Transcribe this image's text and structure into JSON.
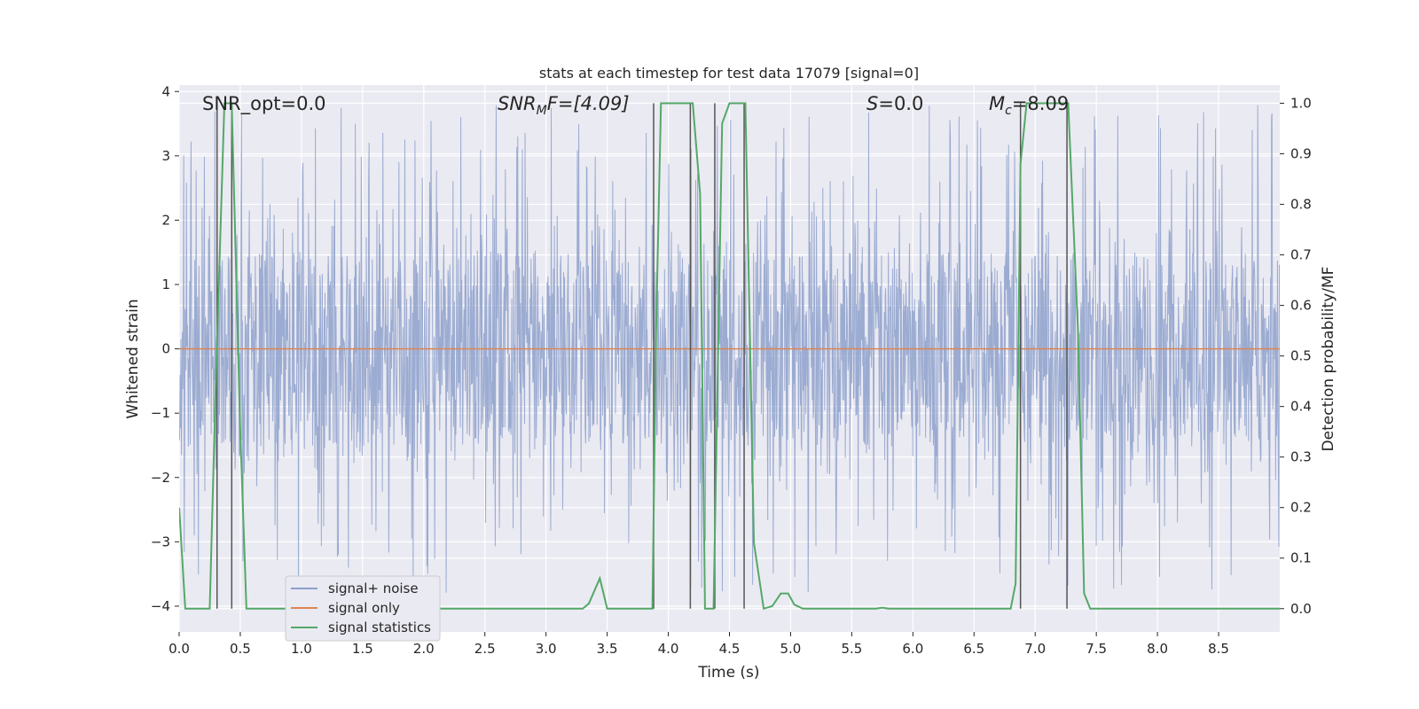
{
  "chart_data": {
    "type": "line",
    "title": "stats at each timestep for test data 17079 [signal=0]",
    "xlabel": "Time (s)",
    "ylabel_left": "Whitened strain",
    "ylabel_right": "Detection probability/MF",
    "xlim": [
      0.0,
      9.0
    ],
    "ylim_left": [
      -4.4,
      4.1
    ],
    "ylim_right": [
      -0.046,
      1.036
    ],
    "x_ticks": [
      0.0,
      0.5,
      1.0,
      1.5,
      2.0,
      2.5,
      3.0,
      3.5,
      4.0,
      4.5,
      5.0,
      5.5,
      6.0,
      6.5,
      7.0,
      7.5,
      8.0,
      8.5
    ],
    "x_tick_labels": [
      "0.0",
      "0.5",
      "1.0",
      "1.5",
      "2.0",
      "2.5",
      "3.0",
      "3.5",
      "4.0",
      "4.5",
      "5.0",
      "5.5",
      "6.0",
      "6.5",
      "7.0",
      "7.5",
      "8.0",
      "8.5"
    ],
    "y_left_ticks": [
      4,
      3,
      2,
      1,
      0,
      -1,
      -2,
      -3,
      -4
    ],
    "y_left_tick_labels": [
      "4",
      "3",
      "2",
      "1",
      "0",
      "−1",
      "−2",
      "−3",
      "−4"
    ],
    "y_right_ticks": [
      1.0,
      0.9,
      0.8,
      0.7,
      0.6,
      0.5,
      0.4,
      0.3,
      0.2,
      0.1,
      0.0
    ],
    "y_right_tick_labels": [
      "1.0",
      "0.9",
      "0.8",
      "0.7",
      "0.6",
      "0.5",
      "0.4",
      "0.3",
      "0.2",
      "0.1",
      "0.0"
    ],
    "grid": true,
    "legend_position": "lower-left",
    "legend": [
      {
        "label": "signal+ noise",
        "color": "#8da0cb"
      },
      {
        "label": "signal only",
        "color": "#dd8452"
      },
      {
        "label": "signal statistics",
        "color": "#55a868"
      }
    ],
    "annotations": {
      "snr_opt": "SNR_opt=0.0",
      "snr_mf_base": "SNR",
      "snr_mf_sub": "M",
      "snr_mf_rest": "F=[4.09]",
      "s_label": "S",
      "s_value": "=0.0",
      "mc_base": "M",
      "mc_sub": "c",
      "mc_value": "=8.09"
    },
    "series": [
      {
        "name": "signal+ noise",
        "axis": "left",
        "color": "#8da0cb",
        "description_level": "dense whitened noise, core band ±1.5, spikes to about ±3.5",
        "core_amplitude": 1.5,
        "spike_max": 3.8
      },
      {
        "name": "signal only",
        "axis": "left",
        "color": "#dd8452",
        "x": [
          0.0,
          9.0
        ],
        "y": [
          0.0,
          0.0
        ]
      },
      {
        "name": "signal statistics",
        "axis": "right",
        "color": "#55a868",
        "x": [
          0.0,
          0.05,
          0.25,
          0.3,
          0.37,
          0.43,
          0.5,
          0.55,
          3.3,
          3.35,
          3.44,
          3.5,
          3.87,
          3.9,
          3.94,
          4.2,
          4.26,
          4.3,
          4.37,
          4.44,
          4.5,
          4.63,
          4.7,
          4.78,
          4.85,
          4.92,
          4.98,
          5.03,
          5.1,
          5.7,
          5.75,
          5.8,
          6.8,
          6.84,
          6.88,
          6.93,
          7.27,
          7.35,
          7.4,
          7.45,
          9.0
        ],
        "y": [
          0.2,
          0.0,
          0.0,
          0.45,
          1.0,
          1.0,
          0.35,
          0.0,
          0.0,
          0.01,
          0.06,
          0.0,
          0.0,
          0.55,
          1.0,
          1.0,
          0.82,
          0.0,
          0.0,
          0.96,
          1.0,
          1.0,
          0.13,
          0.0,
          0.005,
          0.03,
          0.03,
          0.008,
          0.0,
          0.0,
          0.002,
          0.0,
          0.0,
          0.05,
          0.88,
          1.0,
          1.0,
          0.55,
          0.03,
          0.0,
          0.0
        ]
      }
    ],
    "vertical_lines_x": [
      0.31,
      0.43,
      3.88,
      4.18,
      4.38,
      4.62,
      6.88,
      7.26
    ],
    "vertical_line_color": "#555555"
  }
}
